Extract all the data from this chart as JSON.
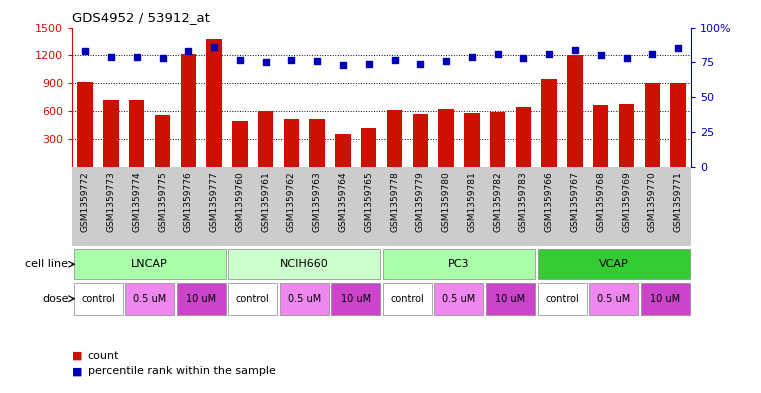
{
  "title": "GDS4952 / 53912_at",
  "samples": [
    "GSM1359772",
    "GSM1359773",
    "GSM1359774",
    "GSM1359775",
    "GSM1359776",
    "GSM1359777",
    "GSM1359760",
    "GSM1359761",
    "GSM1359762",
    "GSM1359763",
    "GSM1359764",
    "GSM1359765",
    "GSM1359778",
    "GSM1359779",
    "GSM1359780",
    "GSM1359781",
    "GSM1359782",
    "GSM1359783",
    "GSM1359766",
    "GSM1359767",
    "GSM1359768",
    "GSM1359769",
    "GSM1359770",
    "GSM1359771"
  ],
  "counts": [
    910,
    720,
    720,
    560,
    1210,
    1380,
    490,
    600,
    520,
    520,
    360,
    420,
    610,
    570,
    620,
    580,
    590,
    650,
    950,
    1200,
    670,
    680,
    900,
    900
  ],
  "percentiles": [
    83,
    79,
    79,
    78,
    83,
    86,
    77,
    75,
    77,
    76,
    73,
    74,
    77,
    74,
    76,
    79,
    81,
    78,
    81,
    84,
    80,
    78,
    81,
    85
  ],
  "cell_lines": [
    {
      "name": "LNCAP",
      "start": 0,
      "end": 6,
      "color": "#aaffaa"
    },
    {
      "name": "NCIH660",
      "start": 6,
      "end": 12,
      "color": "#ccffcc"
    },
    {
      "name": "PC3",
      "start": 12,
      "end": 18,
      "color": "#aaffaa"
    },
    {
      "name": "VCAP",
      "start": 18,
      "end": 24,
      "color": "#33cc33"
    }
  ],
  "doses": [
    {
      "label": "control",
      "start": 0,
      "end": 2,
      "color": "#ffffff"
    },
    {
      "label": "0.5 uM",
      "start": 2,
      "end": 4,
      "color": "#ee88ee"
    },
    {
      "label": "10 uM",
      "start": 4,
      "end": 6,
      "color": "#cc44cc"
    },
    {
      "label": "control",
      "start": 6,
      "end": 8,
      "color": "#ffffff"
    },
    {
      "label": "0.5 uM",
      "start": 8,
      "end": 10,
      "color": "#ee88ee"
    },
    {
      "label": "10 uM",
      "start": 10,
      "end": 12,
      "color": "#cc44cc"
    },
    {
      "label": "control",
      "start": 12,
      "end": 14,
      "color": "#ffffff"
    },
    {
      "label": "0.5 uM",
      "start": 14,
      "end": 16,
      "color": "#ee88ee"
    },
    {
      "label": "10 uM",
      "start": 16,
      "end": 18,
      "color": "#cc44cc"
    },
    {
      "label": "control",
      "start": 18,
      "end": 20,
      "color": "#ffffff"
    },
    {
      "label": "0.5 uM",
      "start": 20,
      "end": 22,
      "color": "#ee88ee"
    },
    {
      "label": "10 uM",
      "start": 22,
      "end": 24,
      "color": "#cc44cc"
    }
  ],
  "bar_color": "#cc1100",
  "dot_color": "#0000bb",
  "ylim_left": [
    0,
    1500
  ],
  "ylim_right": [
    0,
    100
  ],
  "yticks_left": [
    300,
    600,
    900,
    1200,
    1500
  ],
  "yticks_right": [
    0,
    25,
    50,
    75,
    100
  ],
  "grid_values": [
    300,
    600,
    900,
    1200
  ],
  "plot_bg": "#ffffff",
  "xticklabel_bg": "#cccccc",
  "cell_line_label": "cell line",
  "dose_label": "dose",
  "legend_count": "count",
  "legend_pct": "percentile rank within the sample"
}
